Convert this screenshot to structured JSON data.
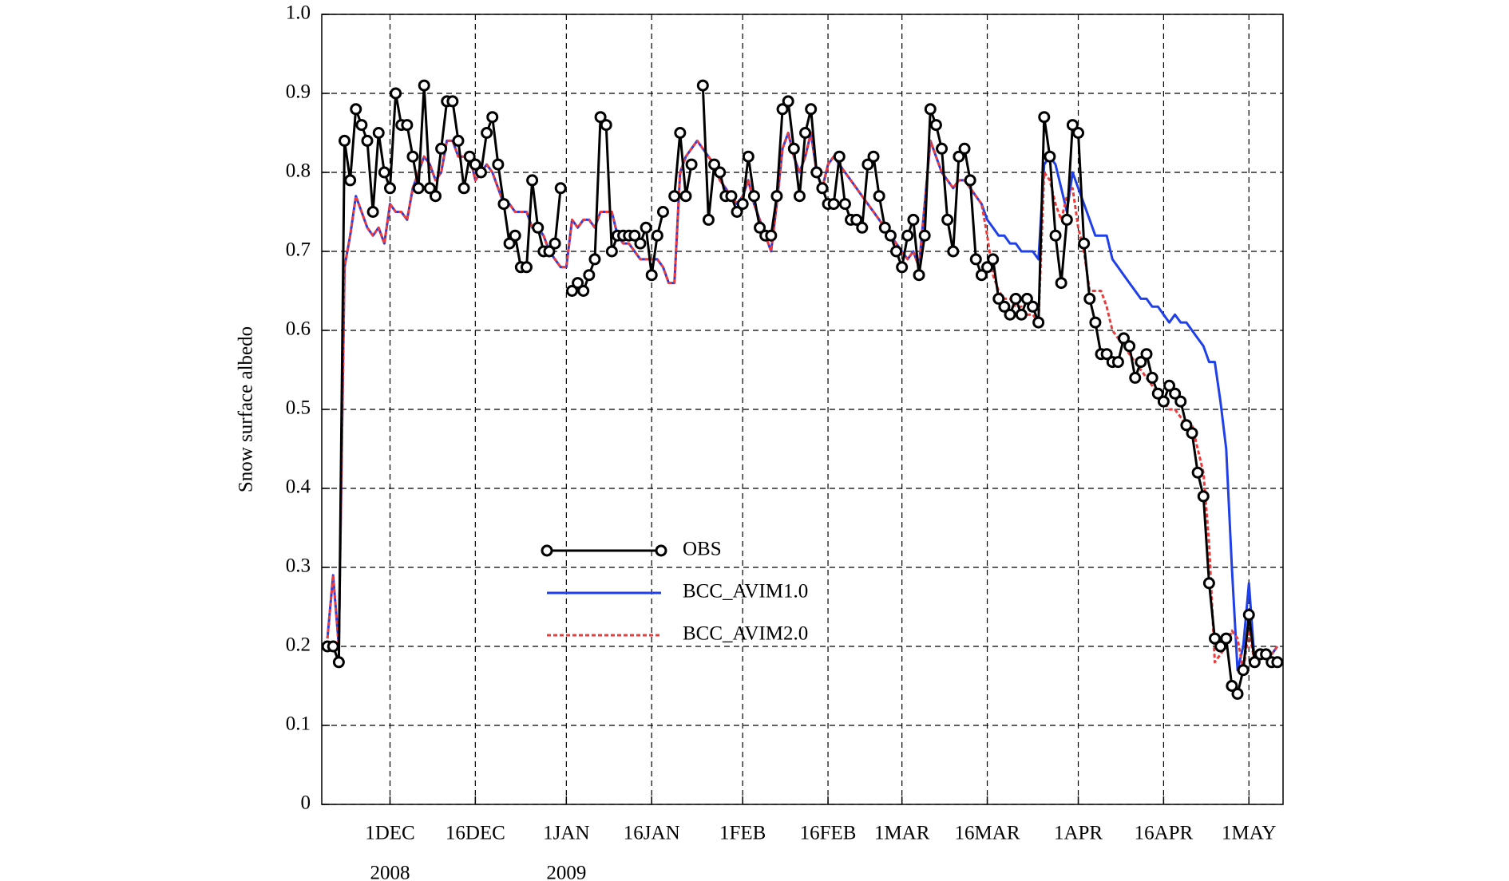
{
  "chart_data": {
    "type": "line",
    "y_label": "Snow surface albedo",
    "x": [
      -11,
      -10,
      -9,
      -8,
      -7,
      -6,
      -5,
      -4,
      -3,
      -2,
      -1,
      0,
      1,
      2,
      3,
      4,
      5,
      6,
      7,
      8,
      9,
      10,
      11,
      12,
      13,
      14,
      15,
      16,
      17,
      18,
      19,
      20,
      21,
      22,
      23,
      24,
      25,
      26,
      27,
      28,
      29,
      30,
      31,
      32,
      33,
      34,
      35,
      36,
      37,
      38,
      39,
      40,
      41,
      42,
      43,
      44,
      45,
      46,
      47,
      48,
      49,
      50,
      51,
      52,
      53,
      54,
      55,
      56,
      57,
      58,
      59,
      60,
      61,
      62,
      63,
      64,
      65,
      66,
      67,
      68,
      69,
      70,
      71,
      72,
      73,
      74,
      75,
      76,
      77,
      78,
      79,
      80,
      81,
      82,
      83,
      84,
      85,
      86,
      87,
      88,
      89,
      90,
      91,
      92,
      93,
      94,
      95,
      96,
      97,
      98,
      99,
      100,
      101,
      102,
      103,
      104,
      105,
      106,
      107,
      108,
      109,
      110,
      111,
      112,
      113,
      114,
      115,
      116,
      117,
      118,
      119,
      120,
      121,
      122,
      123,
      124,
      125,
      126,
      127,
      128,
      129,
      130,
      131,
      132,
      133,
      134,
      135,
      136,
      137,
      138,
      139,
      140,
      141,
      142,
      143,
      144,
      145,
      146,
      147,
      148,
      149,
      150,
      151,
      152,
      153,
      154,
      155,
      156
    ],
    "series": [
      {
        "name": "OBS",
        "color": "#000000",
        "marker": "circle",
        "line_style": "solid",
        "values": [
          0.2,
          0.2,
          0.18,
          0.84,
          0.79,
          0.88,
          0.86,
          0.84,
          0.75,
          0.85,
          0.8,
          0.78,
          0.9,
          0.86,
          0.86,
          0.82,
          0.78,
          0.91,
          0.78,
          0.77,
          0.83,
          0.89,
          0.89,
          0.84,
          0.78,
          0.82,
          0.81,
          0.8,
          0.85,
          0.87,
          0.81,
          0.76,
          0.71,
          0.72,
          0.68,
          0.68,
          0.79,
          0.73,
          0.7,
          0.7,
          0.71,
          0.78,
          null,
          0.65,
          0.66,
          0.65,
          0.67,
          0.69,
          0.87,
          0.86,
          0.7,
          0.72,
          0.72,
          0.72,
          0.72,
          0.71,
          0.73,
          0.67,
          0.72,
          0.75,
          null,
          0.77,
          0.85,
          0.77,
          0.81,
          null,
          0.91,
          0.74,
          0.81,
          0.8,
          0.77,
          0.77,
          0.75,
          0.76,
          0.82,
          0.77,
          0.73,
          0.72,
          0.72,
          0.77,
          0.88,
          0.89,
          0.83,
          0.77,
          0.85,
          0.88,
          0.8,
          0.78,
          0.76,
          0.76,
          0.82,
          0.76,
          0.74,
          0.74,
          0.73,
          0.81,
          0.82,
          0.77,
          0.73,
          0.72,
          0.7,
          0.68,
          0.72,
          0.74,
          0.67,
          0.72,
          0.88,
          0.86,
          0.83,
          0.74,
          0.7,
          0.82,
          0.83,
          0.79,
          0.69,
          0.67,
          0.68,
          0.69,
          0.64,
          0.63,
          0.62,
          0.64,
          0.62,
          0.64,
          0.63,
          0.61,
          0.87,
          0.82,
          0.72,
          0.66,
          0.74,
          0.86,
          0.85,
          0.71,
          0.64,
          0.61,
          0.57,
          0.57,
          0.56,
          0.56,
          0.59,
          0.58,
          0.54,
          0.56,
          0.57,
          0.54,
          0.52,
          0.51,
          0.53,
          0.52,
          0.51,
          0.48,
          0.47,
          0.42,
          0.39,
          0.28,
          0.21,
          0.2,
          0.21,
          0.15,
          0.14,
          0.17,
          0.24,
          0.18,
          0.19,
          0.19,
          0.18,
          0.18
        ]
      },
      {
        "name": "BCC_AVIM1.0",
        "color": "#1f3fe8",
        "marker": "none",
        "line_style": "solid",
        "values": [
          0.21,
          0.29,
          0.2,
          0.68,
          0.72,
          0.77,
          0.75,
          0.73,
          0.72,
          0.73,
          0.71,
          0.76,
          0.75,
          0.75,
          0.74,
          0.78,
          0.8,
          0.82,
          0.81,
          0.79,
          0.8,
          0.84,
          0.84,
          0.82,
          0.82,
          0.82,
          0.79,
          0.8,
          0.81,
          0.8,
          0.78,
          0.76,
          0.76,
          0.75,
          0.75,
          0.75,
          0.73,
          0.73,
          0.72,
          0.7,
          0.69,
          0.68,
          0.68,
          0.74,
          0.73,
          0.74,
          0.74,
          0.73,
          0.75,
          0.75,
          0.75,
          0.72,
          0.71,
          0.71,
          0.7,
          0.69,
          0.69,
          0.69,
          0.69,
          0.68,
          0.66,
          0.66,
          0.8,
          0.82,
          0.83,
          0.84,
          0.83,
          0.82,
          0.81,
          0.79,
          0.78,
          0.77,
          0.76,
          0.77,
          0.79,
          0.76,
          0.74,
          0.72,
          0.7,
          0.76,
          0.83,
          0.85,
          0.82,
          0.8,
          0.82,
          0.85,
          0.8,
          0.78,
          0.81,
          0.82,
          0.81,
          0.8,
          0.79,
          0.78,
          0.77,
          0.76,
          0.75,
          0.74,
          0.73,
          0.72,
          0.71,
          0.7,
          0.69,
          0.7,
          0.68,
          0.76,
          0.84,
          0.82,
          0.8,
          0.79,
          0.78,
          0.79,
          0.79,
          0.78,
          0.77,
          0.76,
          0.74,
          0.73,
          0.72,
          0.72,
          0.71,
          0.71,
          0.7,
          0.7,
          0.7,
          0.69,
          0.81,
          0.82,
          0.81,
          0.78,
          0.75,
          0.8,
          0.78,
          0.76,
          0.74,
          0.72,
          0.72,
          0.72,
          0.69,
          0.68,
          0.67,
          0.66,
          0.65,
          0.64,
          0.64,
          0.63,
          0.63,
          0.62,
          0.61,
          0.62,
          0.61,
          0.61,
          0.6,
          0.59,
          0.58,
          0.56,
          0.56,
          0.51,
          0.45,
          0.3,
          0.17,
          0.2,
          0.28,
          0.18,
          0.19,
          0.19,
          0.19,
          0.2
        ]
      },
      {
        "name": "BCC_AVIM2.0",
        "color": "#ee3a3a",
        "marker": "none",
        "line_style": "dashed",
        "values": [
          0.21,
          0.29,
          0.2,
          0.68,
          0.72,
          0.77,
          0.75,
          0.73,
          0.72,
          0.73,
          0.71,
          0.76,
          0.75,
          0.75,
          0.74,
          0.78,
          0.8,
          0.82,
          0.81,
          0.79,
          0.8,
          0.84,
          0.84,
          0.82,
          0.82,
          0.82,
          0.79,
          0.8,
          0.81,
          0.8,
          0.78,
          0.76,
          0.76,
          0.75,
          0.75,
          0.75,
          0.73,
          0.73,
          0.72,
          0.7,
          0.69,
          0.68,
          0.68,
          0.74,
          0.73,
          0.74,
          0.74,
          0.73,
          0.75,
          0.75,
          0.75,
          0.72,
          0.71,
          0.71,
          0.7,
          0.69,
          0.69,
          0.69,
          0.69,
          0.68,
          0.66,
          0.66,
          0.8,
          0.82,
          0.83,
          0.84,
          0.83,
          0.82,
          0.81,
          0.79,
          0.78,
          0.77,
          0.76,
          0.77,
          0.79,
          0.76,
          0.74,
          0.72,
          0.7,
          0.76,
          0.83,
          0.85,
          0.82,
          0.8,
          0.82,
          0.85,
          0.8,
          0.78,
          0.81,
          0.82,
          0.81,
          0.8,
          0.79,
          0.78,
          0.77,
          0.76,
          0.75,
          0.74,
          0.73,
          0.72,
          0.71,
          0.7,
          0.69,
          0.7,
          0.68,
          0.76,
          0.84,
          0.82,
          0.8,
          0.79,
          0.78,
          0.79,
          0.79,
          0.78,
          0.77,
          0.76,
          0.72,
          0.67,
          0.65,
          0.64,
          0.64,
          0.63,
          0.63,
          0.62,
          0.62,
          0.61,
          0.8,
          0.79,
          0.76,
          0.74,
          0.77,
          0.78,
          0.73,
          0.7,
          0.65,
          0.65,
          0.65,
          0.63,
          0.6,
          0.59,
          0.58,
          0.57,
          0.56,
          0.55,
          0.54,
          0.53,
          0.52,
          0.51,
          0.5,
          0.5,
          0.49,
          0.48,
          0.48,
          0.45,
          0.42,
          0.33,
          0.18,
          0.19,
          0.2,
          0.22,
          0.21,
          0.17,
          0.22,
          0.18,
          0.19,
          0.19,
          0.19,
          0.2
        ]
      }
    ],
    "xlim": [
      -12,
      157
    ],
    "xticks": [
      {
        "value": 0,
        "label": "1DEC"
      },
      {
        "value": 15,
        "label": "16DEC"
      },
      {
        "value": 31,
        "label": "1JAN"
      },
      {
        "value": 46,
        "label": "16JAN"
      },
      {
        "value": 62,
        "label": "1FEB"
      },
      {
        "value": 77,
        "label": "16FEB"
      },
      {
        "value": 90,
        "label": "1MAR"
      },
      {
        "value": 105,
        "label": "16MAR"
      },
      {
        "value": 121,
        "label": "1APR"
      },
      {
        "value": 136,
        "label": "16APR"
      },
      {
        "value": 151,
        "label": "1MAY"
      }
    ],
    "x_year_labels": [
      {
        "value": 0,
        "label": "2008"
      },
      {
        "value": 31,
        "label": "2009"
      }
    ],
    "ylim": [
      0,
      1
    ],
    "yticks": [
      0,
      0.1,
      0.2,
      0.3,
      0.4,
      0.5,
      0.6,
      0.7,
      0.8,
      0.9,
      {
        "value": 1,
        "label": "1.0"
      }
    ],
    "grid": true
  }
}
